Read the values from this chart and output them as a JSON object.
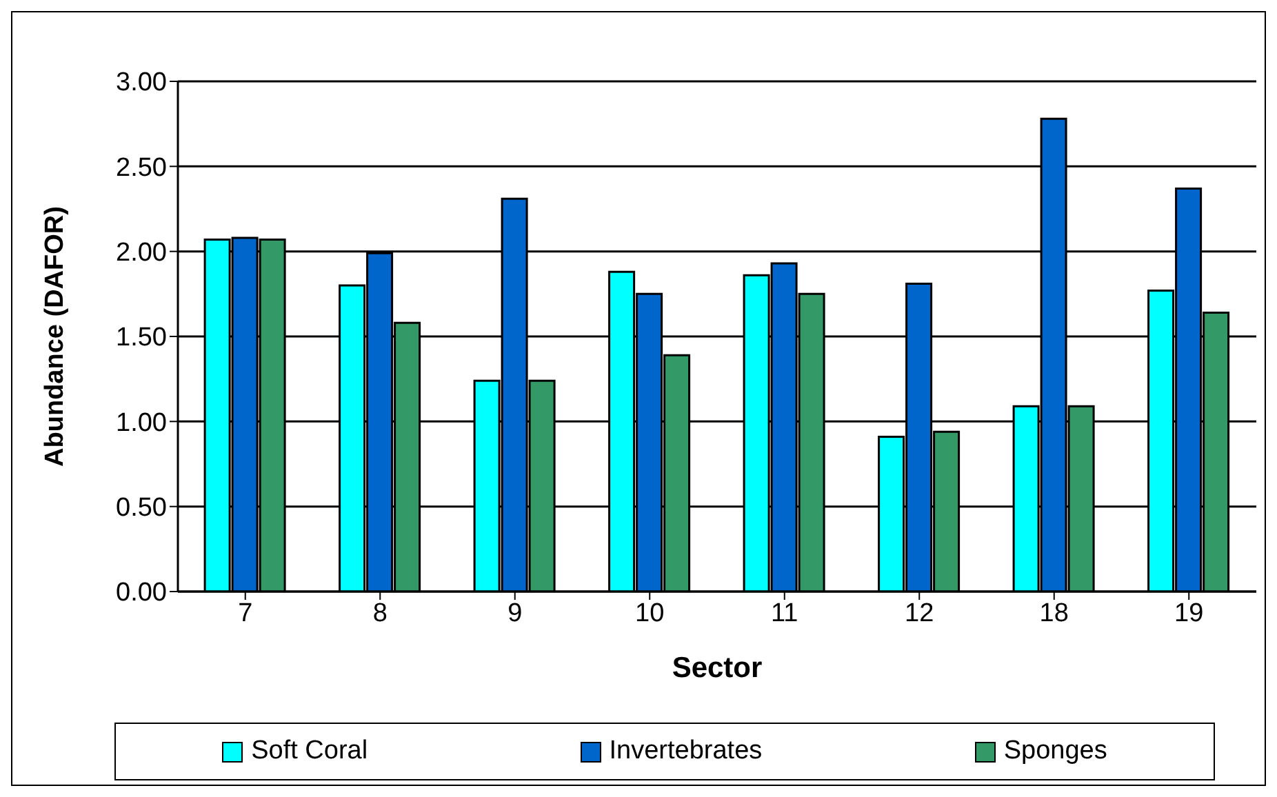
{
  "chart_data": {
    "type": "bar",
    "xlabel": "Sector",
    "ylabel": "Abundance (DAFOR)",
    "categories": [
      "7",
      "8",
      "9",
      "10",
      "11",
      "12",
      "18",
      "19"
    ],
    "series": [
      {
        "name": "Soft Coral",
        "color": "#00ffff",
        "values": [
          2.07,
          1.8,
          1.24,
          1.88,
          1.86,
          0.91,
          1.09,
          1.77
        ]
      },
      {
        "name": "Invertebrates",
        "color": "#0066cc",
        "values": [
          2.08,
          1.99,
          2.31,
          1.75,
          1.93,
          1.81,
          2.78,
          2.37
        ]
      },
      {
        "name": "Sponges",
        "color": "#339966",
        "values": [
          2.07,
          1.58,
          1.24,
          1.39,
          1.75,
          0.94,
          1.09,
          1.64
        ]
      }
    ],
    "ylim": [
      0,
      3
    ],
    "yticks": [
      {
        "value": 0,
        "label": "0.00"
      },
      {
        "value": 0.5,
        "label": "0.50"
      },
      {
        "value": 1,
        "label": "1.00"
      },
      {
        "value": 1.5,
        "label": "1.50"
      },
      {
        "value": 2,
        "label": "2.00"
      },
      {
        "value": 2.5,
        "label": "2.50"
      },
      {
        "value": 3,
        "label": "3.00"
      }
    ],
    "grid": "y",
    "legend": "bottom"
  }
}
